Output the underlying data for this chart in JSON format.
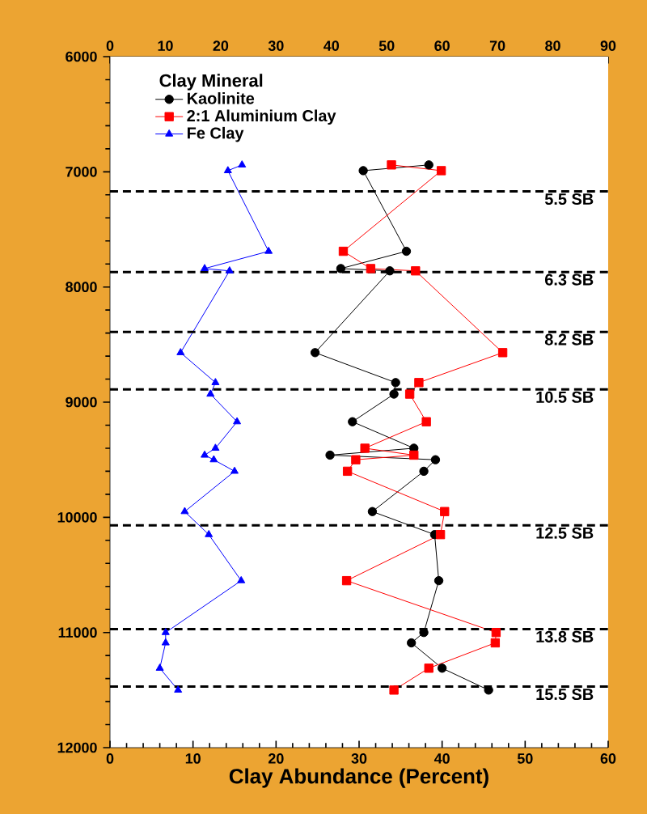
{
  "chart_data": {
    "type": "line",
    "xlabel": "Clay Abundance (Percent)",
    "legend_title": "Clay Mineral",
    "legend": "top left",
    "grid": false,
    "xlim": [
      0,
      60
    ],
    "xticks": [
      0,
      10,
      20,
      30,
      40,
      50,
      60
    ],
    "x2lim": [
      0,
      90
    ],
    "x2ticks": [
      0,
      10,
      20,
      30,
      40,
      50,
      60,
      70,
      80,
      90
    ],
    "ylim": [
      12000,
      6000
    ],
    "yticks": [
      6000,
      7000,
      8000,
      9000,
      10000,
      11000,
      12000
    ],
    "series": [
      {
        "name": "Kaolinite",
        "color": "#000000",
        "marker": "circle",
        "x": [
          38.4,
          30.5,
          35.7,
          27.8,
          33.7,
          24.7,
          34.4,
          34.2,
          29.2,
          36.6,
          26.5,
          39.2,
          37.8,
          31.6,
          39.1,
          39.6,
          37.8,
          36.3,
          40.0,
          45.6
        ],
        "values": [
          6940,
          6990,
          7690,
          7840,
          7860,
          8570,
          8830,
          8930,
          9170,
          9400,
          9460,
          9500,
          9600,
          9950,
          10150,
          10550,
          11000,
          11090,
          11310,
          11500
        ]
      },
      {
        "name": "2:1 Aluminium Clay",
        "color": "#ff0000",
        "marker": "square",
        "x": [
          33.9,
          39.9,
          28.1,
          31.4,
          36.8,
          47.3,
          37.2,
          36.1,
          38.1,
          30.7,
          36.6,
          29.6,
          28.6,
          40.3,
          39.8,
          28.5,
          46.5,
          46.4,
          38.4,
          34.2
        ],
        "values": [
          6940,
          6990,
          7690,
          7840,
          7860,
          8570,
          8830,
          8930,
          9170,
          9400,
          9460,
          9500,
          9600,
          9950,
          10150,
          10550,
          11000,
          11090,
          11310,
          11500
        ]
      },
      {
        "name": "Fe Clay",
        "color": "#0000ff",
        "marker": "triangle",
        "x": [
          15.9,
          14.2,
          19.1,
          11.4,
          14.4,
          8.5,
          12.7,
          12.1,
          15.3,
          12.7,
          11.4,
          12.5,
          15.0,
          9.0,
          11.9,
          15.8,
          6.7,
          6.7,
          6.0,
          8.2
        ],
        "values": [
          6940,
          6990,
          7690,
          7840,
          7860,
          8570,
          8830,
          8930,
          9170,
          9400,
          9460,
          9500,
          9600,
          9950,
          10150,
          10550,
          11000,
          11090,
          11310,
          11500
        ]
      }
    ],
    "ref_lines": [
      {
        "axis": "y",
        "value": 7170,
        "label": "5.5 SB",
        "color": "#000000",
        "line_style": "dashed"
      },
      {
        "axis": "y",
        "value": 7870,
        "label": "6.3 SB",
        "color": "#000000",
        "line_style": "dashed"
      },
      {
        "axis": "y",
        "value": 8390,
        "label": "8.2 SB",
        "color": "#000000",
        "line_style": "dashed"
      },
      {
        "axis": "y",
        "value": 8890,
        "label": "10.5 SB",
        "color": "#000000",
        "line_style": "dashed"
      },
      {
        "axis": "y",
        "value": 10070,
        "label": "12.5 SB",
        "color": "#000000",
        "line_style": "dashed"
      },
      {
        "axis": "y",
        "value": 10970,
        "label": "13.8 SB",
        "color": "#000000",
        "line_style": "dashed"
      },
      {
        "axis": "y",
        "value": 11470,
        "label": "15.5 SB",
        "color": "#000000",
        "line_style": "dashed"
      }
    ]
  }
}
